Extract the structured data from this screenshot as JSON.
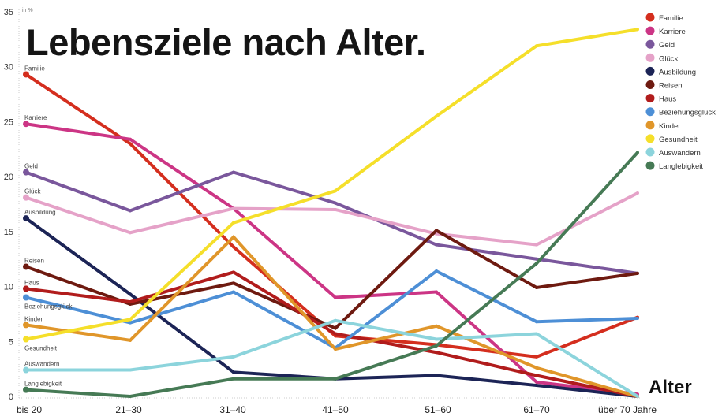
{
  "chart_data": {
    "type": "line",
    "title": "Lebensziele nach Alter.",
    "xlabel": "Alter",
    "ylabel": "in %",
    "ylim": [
      0,
      35
    ],
    "yticks": [
      0,
      5,
      10,
      15,
      20,
      25,
      30,
      35
    ],
    "grid": false,
    "legend": "top-right",
    "categories": [
      "bis 20",
      "21–30",
      "31–40",
      "41–50",
      "51–60",
      "61–70",
      "über 70 Jahre"
    ],
    "series": [
      {
        "name": "Familie",
        "color": "#d42e1e",
        "values": [
          29.3,
          23.0,
          13.6,
          5.5,
          4.7,
          3.6,
          7.2
        ]
      },
      {
        "name": "Karriere",
        "color": "#cc3585",
        "values": [
          24.8,
          23.4,
          17.1,
          9.0,
          9.5,
          1.3,
          0.2
        ]
      },
      {
        "name": "Geld",
        "color": "#7a579c",
        "values": [
          20.4,
          16.9,
          20.4,
          17.6,
          13.8,
          12.5,
          11.2
        ]
      },
      {
        "name": "Glück",
        "color": "#e5a2c8",
        "values": [
          18.1,
          14.9,
          17.1,
          17.0,
          14.8,
          13.8,
          18.5
        ]
      },
      {
        "name": "Ausbildung",
        "color": "#1c2456",
        "values": [
          16.2,
          9.3,
          2.2,
          1.6,
          1.9,
          1.0,
          0.0
        ]
      },
      {
        "name": "Reisen",
        "color": "#6e1a10",
        "values": [
          11.8,
          8.4,
          10.3,
          6.2,
          15.1,
          9.9,
          11.2
        ]
      },
      {
        "name": "Haus",
        "color": "#b11c1c",
        "values": [
          9.8,
          8.6,
          11.3,
          5.7,
          4.0,
          1.9,
          0.0
        ]
      },
      {
        "name": "Beziehungsglück",
        "color": "#4d8fd6",
        "values": [
          9.0,
          6.7,
          9.5,
          4.4,
          11.4,
          6.8,
          7.1
        ]
      },
      {
        "name": "Kinder",
        "color": "#e0962a",
        "values": [
          6.5,
          5.1,
          14.5,
          4.3,
          6.4,
          2.6,
          0.0
        ]
      },
      {
        "name": "Gesundheit",
        "color": "#f5df2a",
        "values": [
          5.2,
          7.0,
          15.8,
          18.7,
          25.5,
          31.9,
          33.4
        ]
      },
      {
        "name": "Auswandern",
        "color": "#8cd4dc",
        "values": [
          2.4,
          2.4,
          3.6,
          6.9,
          5.2,
          5.7,
          0.0
        ]
      },
      {
        "name": "Langlebigkeit",
        "color": "#467a55",
        "values": [
          0.6,
          0.0,
          1.6,
          1.6,
          4.6,
          12.1,
          22.2
        ]
      }
    ]
  }
}
